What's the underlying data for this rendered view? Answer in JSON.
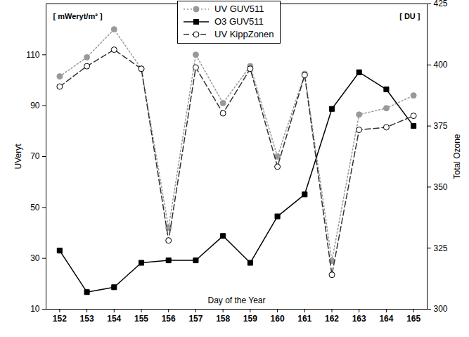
{
  "chart_data": {
    "type": "line",
    "x": [
      152,
      153,
      154,
      155,
      156,
      157,
      158,
      159,
      160,
      161,
      162,
      163,
      164,
      165
    ],
    "xlabel": "Day of the Year",
    "ylabel": "UVeryt",
    "y_unit": "[ mWeryt/m² ]",
    "y2label": "Total Ozone",
    "y2_unit": "[ DU ]",
    "xlim": [
      151.5,
      165.5
    ],
    "xticks": [
      152,
      153,
      154,
      155,
      156,
      157,
      158,
      159,
      160,
      161,
      162,
      163,
      164,
      165
    ],
    "ylim": [
      10,
      130
    ],
    "yticks": [
      10,
      30,
      50,
      70,
      90,
      110
    ],
    "y2lim": [
      300,
      425
    ],
    "y2ticks": [
      300,
      325,
      350,
      375,
      400,
      425
    ],
    "grid": false,
    "legend": "top",
    "series": [
      {
        "name": "UV GUV511",
        "color": "#999999",
        "marker": "circle",
        "line_style": "dotted",
        "values": [
          101.5,
          109,
          120,
          104.5,
          42,
          110,
          91,
          105.5,
          70,
          102.5,
          29,
          86.5,
          89,
          94
        ]
      },
      {
        "name": "O3 GUV511",
        "color": "#000000",
        "marker": "square",
        "line_style": "solid",
        "axis": "y2",
        "values": [
          324,
          307,
          309,
          319,
          320,
          320,
          330,
          319,
          338,
          347,
          382,
          397,
          390,
          375
        ]
      },
      {
        "name": "UV KippZonen",
        "color": "#333333",
        "marker": "open-circle",
        "line_style": "dashed",
        "values": [
          97.5,
          105.5,
          112,
          104.5,
          37,
          105,
          87,
          104.5,
          66,
          102,
          23.5,
          80.5,
          81.5,
          86
        ]
      }
    ]
  }
}
